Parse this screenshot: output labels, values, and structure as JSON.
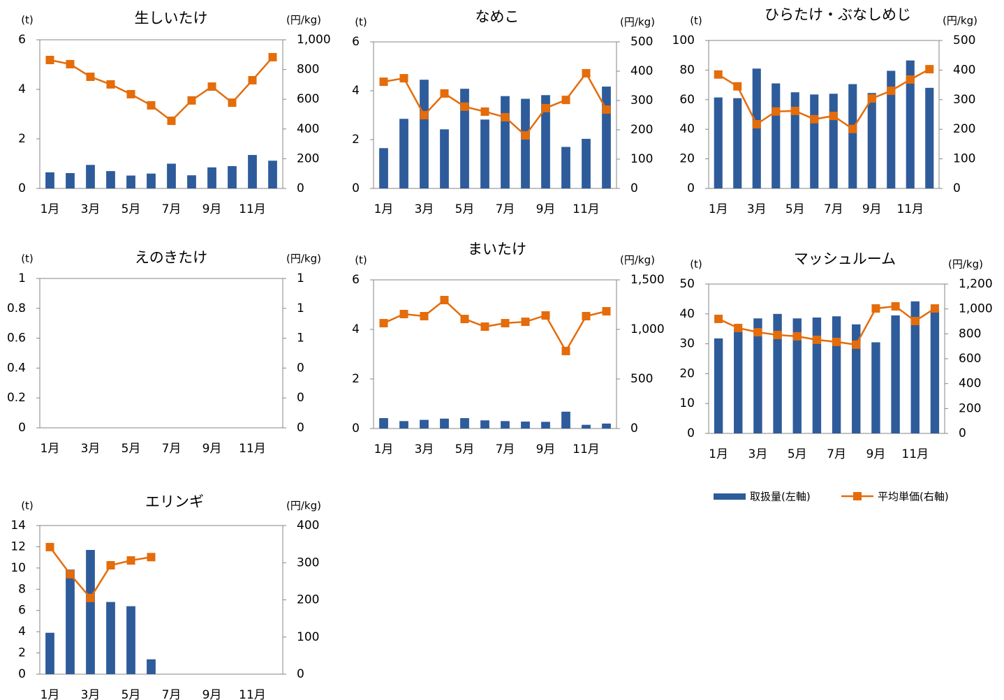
{
  "chart_data": [
    {
      "type": "combo",
      "title": "生しいたけ",
      "y_label": "(t)",
      "y2_label": "(円/kg)",
      "categories": [
        "1月",
        null,
        "3月",
        null,
        "5月",
        null,
        "7月",
        null,
        "9月",
        null,
        "11月",
        null
      ],
      "ylim": [
        0,
        6
      ],
      "yticks": [
        0,
        2,
        4,
        6
      ],
      "y2lim": [
        0,
        1000
      ],
      "y2ticks": [
        0,
        200,
        400,
        600,
        800,
        {
          "value": 1000,
          "label": "1,000"
        }
      ],
      "series": [
        {
          "type": "bar",
          "color": "#2e5b9a",
          "values": [
            0.65,
            0.62,
            0.95,
            0.7,
            0.52,
            0.6,
            1.0,
            0.53,
            0.85,
            0.9,
            1.35,
            1.12
          ]
        },
        {
          "type": "line",
          "axis": "y2",
          "color": "#e46c0a",
          "values": [
            864,
            836,
            751,
            700,
            634,
            559,
            455,
            592,
            685,
            577,
            728,
            883
          ]
        }
      ]
    },
    {
      "type": "combo",
      "title": "なめこ",
      "y_label": "(t)",
      "y2_label": "(円/kg)",
      "categories": [
        "1月",
        null,
        "3月",
        null,
        "5月",
        null,
        "7月",
        null,
        "9月",
        null,
        "11月",
        null
      ],
      "ylim": [
        0,
        6
      ],
      "yticks": [
        0,
        2,
        4,
        6
      ],
      "y2lim": [
        0,
        500
      ],
      "y2ticks": [
        0,
        100,
        200,
        300,
        400,
        500
      ],
      "series": [
        {
          "type": "bar",
          "color": "#2e5b9a",
          "values": [
            1.65,
            2.85,
            4.45,
            2.42,
            4.08,
            2.82,
            3.78,
            3.67,
            3.82,
            1.7,
            2.03,
            4.17
          ]
        },
        {
          "type": "line",
          "axis": "y2",
          "color": "#e46c0a",
          "values": [
            364,
            376,
            250,
            324,
            279,
            262,
            243,
            181,
            274,
            302,
            393,
            269
          ]
        }
      ]
    },
    {
      "type": "combo",
      "title": "ひらたけ・ぶなしめじ",
      "y_label": "(t)",
      "y2_label": "(円/kg)",
      "categories": [
        "1月",
        null,
        "3月",
        null,
        "5月",
        null,
        "7月",
        null,
        "9月",
        null,
        "11月",
        null
      ],
      "ylim": [
        0,
        100
      ],
      "yticks": [
        0,
        20,
        40,
        60,
        80,
        100
      ],
      "y2lim": [
        0,
        500
      ],
      "y2ticks": [
        0,
        100,
        200,
        300,
        400,
        500
      ],
      "series": [
        {
          "type": "bar",
          "color": "#2e5b9a",
          "values": [
            61.5,
            61,
            81,
            71,
            65,
            63.5,
            64,
            70.5,
            64.5,
            79.5,
            86.5,
            68
          ]
        },
        {
          "type": "line",
          "axis": "y2",
          "color": "#e46c0a",
          "values": [
            385,
            345,
            217,
            260,
            262,
            234,
            245,
            201,
            304,
            330,
            368,
            403
          ]
        }
      ]
    },
    {
      "type": "combo",
      "title": "えのきたけ",
      "y_label": "(t)",
      "y2_label": "(円/kg)",
      "categories": [
        "1月",
        null,
        "3月",
        null,
        "5月",
        null,
        "7月",
        null,
        "9月",
        null,
        "11月",
        null
      ],
      "ylim": [
        0,
        1
      ],
      "yticks": [
        0,
        0.2,
        0.4,
        0.6,
        0.8,
        1
      ],
      "y2lim": [
        0,
        1
      ],
      "y2ticks": [
        0,
        {
          "value": 0.2,
          "label": "0"
        },
        {
          "value": 0.4,
          "label": "0"
        },
        {
          "value": 0.6,
          "label": "1"
        },
        {
          "value": 0.8,
          "label": "1"
        },
        1
      ],
      "series": []
    },
    {
      "type": "combo",
      "title": "まいたけ",
      "y_label": "(t)",
      "y2_label": "(円/kg)",
      "categories": [
        "1月",
        null,
        "3月",
        null,
        "5月",
        null,
        "7月",
        null,
        "9月",
        null,
        "11月",
        null
      ],
      "ylim": [
        0,
        6
      ],
      "yticks": [
        0,
        2,
        4,
        6
      ],
      "y2lim": [
        0,
        1500
      ],
      "y2ticks": [
        0,
        500,
        {
          "value": 1000,
          "label": "1,000"
        },
        {
          "value": 1500,
          "label": "1,500"
        }
      ],
      "series": [
        {
          "type": "bar",
          "color": "#2e5b9a",
          "values": [
            0.42,
            0.3,
            0.35,
            0.4,
            0.42,
            0.33,
            0.3,
            0.28,
            0.27,
            0.68,
            0.15,
            0.2
          ]
        },
        {
          "type": "line",
          "axis": "y2",
          "color": "#e46c0a",
          "values": [
            1063,
            1155,
            1134,
            1296,
            1105,
            1028,
            1063,
            1077,
            1141,
            782,
            1134,
            1183
          ]
        }
      ]
    },
    {
      "type": "combo",
      "title": "マッシュルーム",
      "y_label": "(t)",
      "y2_label": "(円/kg)",
      "categories": [
        "1月",
        null,
        "3月",
        null,
        "5月",
        null,
        "7月",
        null,
        "9月",
        null,
        "11月",
        null
      ],
      "ylim": [
        0,
        50
      ],
      "yticks": [
        0,
        10,
        20,
        30,
        40,
        50
      ],
      "y2lim": [
        0,
        1200
      ],
      "y2ticks": [
        0,
        200,
        400,
        600,
        800,
        {
          "value": 1000,
          "label": "1,000"
        },
        {
          "value": 1200,
          "label": "1,200"
        }
      ],
      "series": [
        {
          "type": "bar",
          "color": "#2e5b9a",
          "values": [
            31.8,
            35,
            38.5,
            40,
            38.5,
            38.8,
            39.2,
            36.5,
            30.5,
            39.5,
            44.2,
            41
          ]
        },
        {
          "type": "line",
          "axis": "y2",
          "color": "#e46c0a",
          "values": [
            920,
            847,
            813,
            791,
            780,
            752,
            735,
            713,
            1004,
            1021,
            903,
            1004
          ]
        }
      ]
    },
    {
      "type": "combo",
      "title": "エリンギ",
      "y_label": "(t)",
      "y2_label": "(円/kg)",
      "categories": [
        "1月",
        null,
        "3月",
        null,
        "5月",
        null,
        "7月",
        null,
        "9月",
        null,
        "11月",
        null
      ],
      "ylim": [
        0,
        14
      ],
      "yticks": [
        0,
        2,
        4,
        6,
        8,
        10,
        12,
        14
      ],
      "y2lim": [
        0,
        400
      ],
      "y2ticks": [
        0,
        100,
        200,
        300,
        400
      ],
      "series": [
        {
          "type": "bar",
          "color": "#2e5b9a",
          "values": [
            3.9,
            9.85,
            11.7,
            6.8,
            6.4,
            1.4,
            null,
            null,
            null,
            null,
            null,
            null
          ]
        },
        {
          "type": "line",
          "axis": "y2",
          "color": "#e46c0a",
          "values": [
            342,
            269,
            205,
            293,
            306,
            315,
            null,
            null,
            null,
            null,
            null,
            null
          ]
        }
      ]
    }
  ],
  "legend": [
    {
      "type": "bar",
      "name": "取扱量(左軸)",
      "color": "#2e5b9a"
    },
    {
      "type": "line",
      "name": "平均単価(右軸)",
      "color": "#e46c0a"
    }
  ]
}
